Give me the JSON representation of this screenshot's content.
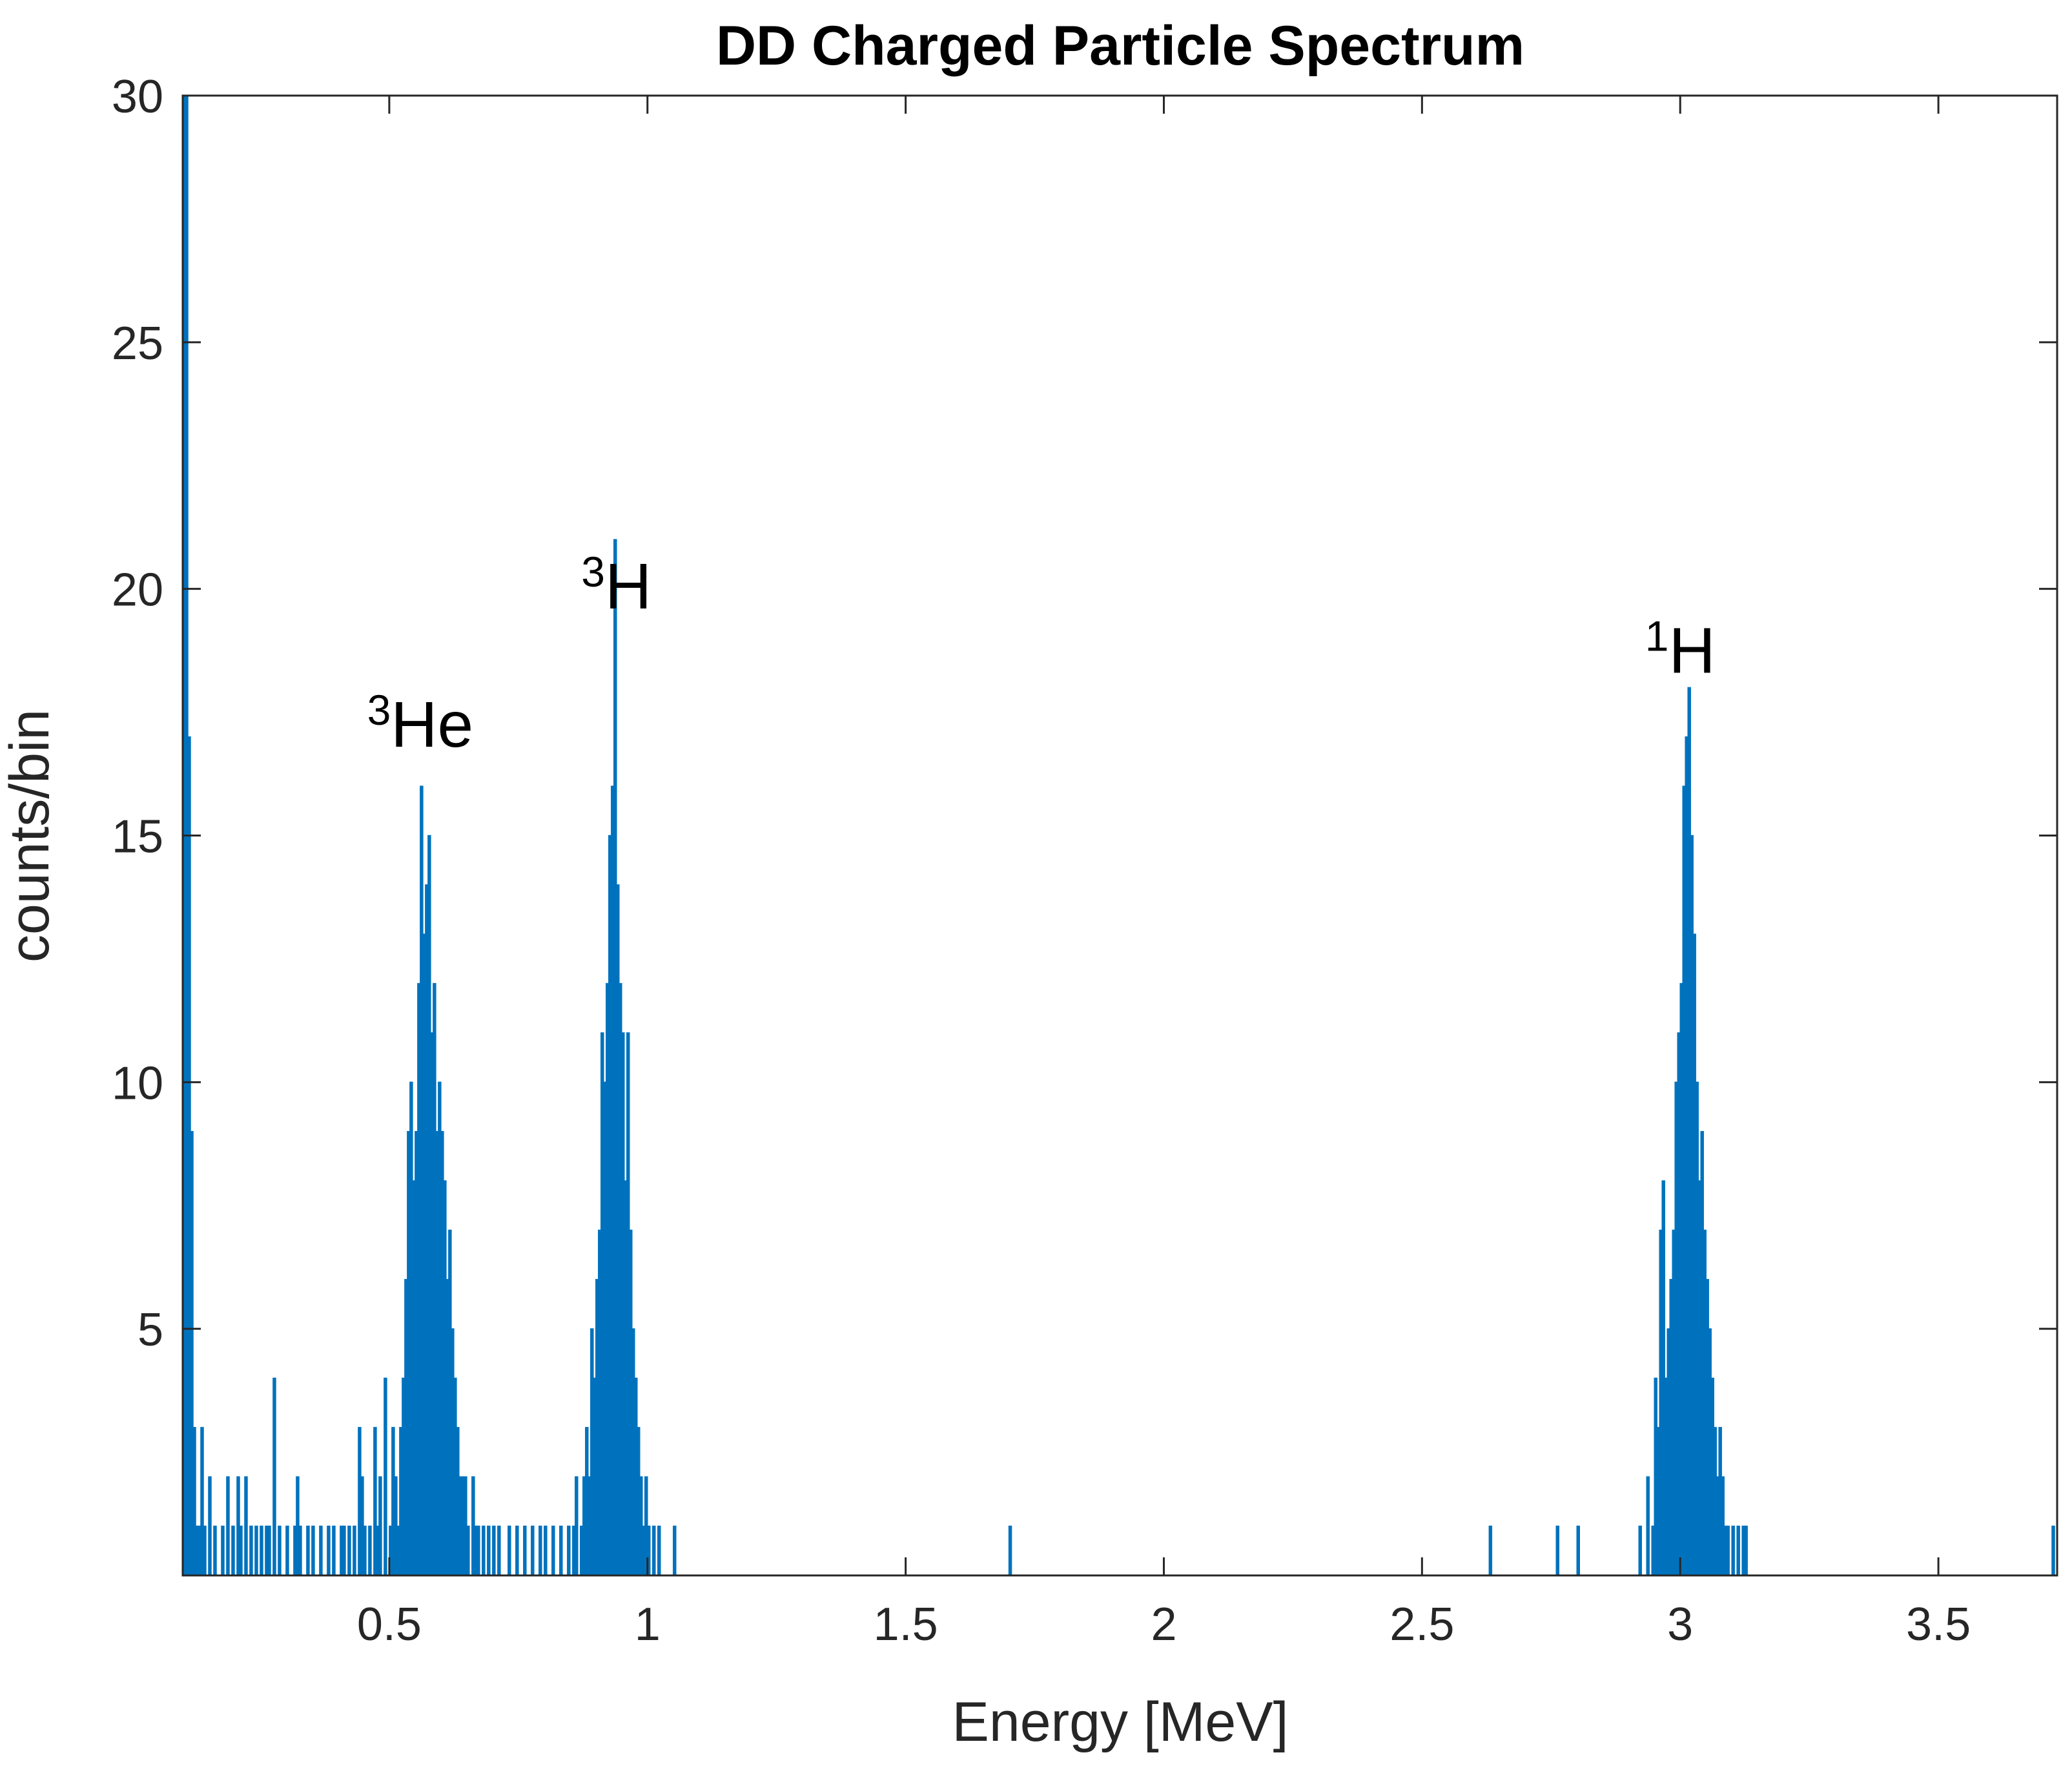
{
  "chart_data": {
    "type": "bar",
    "title": "DD Charged Particle Spectrum",
    "xlabel": "Energy [MeV]",
    "ylabel": "counts/bin",
    "xlim": [
      0.1,
      3.73
    ],
    "ylim": [
      0,
      30
    ],
    "bin_width": 0.005,
    "color": "#0072bd",
    "x_ticks": [
      0.5,
      1,
      1.5,
      2,
      2.5,
      3,
      3.5
    ],
    "x_tick_labels": [
      "0.5",
      "1",
      "1.5",
      "2",
      "2.5",
      "3",
      "3.5"
    ],
    "y_ticks": [
      5,
      10,
      15,
      20,
      25,
      30
    ],
    "y_tick_labels": [
      "5",
      "10",
      "15",
      "20",
      "25",
      "30"
    ],
    "annotations": [
      {
        "sup": "3",
        "text": "He",
        "x": 0.56,
        "y": 16.8
      },
      {
        "sup": "3",
        "text": "H",
        "x": 0.94,
        "y": 19.6
      },
      {
        "sup": "1",
        "text": "H",
        "x": 3.0,
        "y": 18.3
      }
    ],
    "bins": [
      [
        0.1,
        30
      ],
      [
        0.105,
        30
      ],
      [
        0.11,
        17
      ],
      [
        0.115,
        9
      ],
      [
        0.12,
        3
      ],
      [
        0.125,
        1
      ],
      [
        0.13,
        1
      ],
      [
        0.135,
        3
      ],
      [
        0.14,
        1
      ],
      [
        0.15,
        2
      ],
      [
        0.16,
        1
      ],
      [
        0.175,
        1
      ],
      [
        0.185,
        2
      ],
      [
        0.195,
        1
      ],
      [
        0.205,
        2
      ],
      [
        0.21,
        1
      ],
      [
        0.22,
        2
      ],
      [
        0.23,
        1
      ],
      [
        0.24,
        1
      ],
      [
        0.25,
        1
      ],
      [
        0.26,
        1
      ],
      [
        0.265,
        1
      ],
      [
        0.275,
        4
      ],
      [
        0.285,
        1
      ],
      [
        0.3,
        1
      ],
      [
        0.315,
        1
      ],
      [
        0.32,
        2
      ],
      [
        0.325,
        1
      ],
      [
        0.34,
        1
      ],
      [
        0.35,
        1
      ],
      [
        0.365,
        1
      ],
      [
        0.38,
        1
      ],
      [
        0.39,
        1
      ],
      [
        0.405,
        1
      ],
      [
        0.41,
        1
      ],
      [
        0.42,
        1
      ],
      [
        0.43,
        1
      ],
      [
        0.44,
        3
      ],
      [
        0.445,
        2
      ],
      [
        0.45,
        1
      ],
      [
        0.46,
        1
      ],
      [
        0.47,
        3
      ],
      [
        0.475,
        1
      ],
      [
        0.48,
        2
      ],
      [
        0.49,
        4
      ],
      [
        0.5,
        1
      ],
      [
        0.505,
        3
      ],
      [
        0.51,
        2
      ],
      [
        0.515,
        1
      ],
      [
        0.52,
        3
      ],
      [
        0.525,
        4
      ],
      [
        0.53,
        6
      ],
      [
        0.535,
        9
      ],
      [
        0.54,
        10
      ],
      [
        0.545,
        8
      ],
      [
        0.55,
        9
      ],
      [
        0.555,
        12
      ],
      [
        0.56,
        16
      ],
      [
        0.565,
        13
      ],
      [
        0.57,
        14
      ],
      [
        0.575,
        15
      ],
      [
        0.58,
        11
      ],
      [
        0.585,
        12
      ],
      [
        0.59,
        9
      ],
      [
        0.595,
        10
      ],
      [
        0.6,
        9
      ],
      [
        0.605,
        8
      ],
      [
        0.61,
        6
      ],
      [
        0.615,
        7
      ],
      [
        0.62,
        5
      ],
      [
        0.625,
        4
      ],
      [
        0.63,
        3
      ],
      [
        0.635,
        2
      ],
      [
        0.64,
        2
      ],
      [
        0.645,
        2
      ],
      [
        0.65,
        1
      ],
      [
        0.66,
        2
      ],
      [
        0.665,
        1
      ],
      [
        0.67,
        1
      ],
      [
        0.68,
        1
      ],
      [
        0.69,
        1
      ],
      [
        0.7,
        1
      ],
      [
        0.71,
        1
      ],
      [
        0.73,
        1
      ],
      [
        0.745,
        1
      ],
      [
        0.76,
        1
      ],
      [
        0.775,
        1
      ],
      [
        0.79,
        1
      ],
      [
        0.8,
        1
      ],
      [
        0.815,
        1
      ],
      [
        0.83,
        1
      ],
      [
        0.845,
        1
      ],
      [
        0.855,
        1
      ],
      [
        0.86,
        2
      ],
      [
        0.87,
        1
      ],
      [
        0.875,
        2
      ],
      [
        0.88,
        3
      ],
      [
        0.885,
        2
      ],
      [
        0.89,
        5
      ],
      [
        0.895,
        4
      ],
      [
        0.9,
        6
      ],
      [
        0.905,
        7
      ],
      [
        0.91,
        11
      ],
      [
        0.915,
        10
      ],
      [
        0.92,
        12
      ],
      [
        0.925,
        15
      ],
      [
        0.93,
        16
      ],
      [
        0.935,
        21
      ],
      [
        0.94,
        14
      ],
      [
        0.945,
        12
      ],
      [
        0.95,
        11
      ],
      [
        0.955,
        8
      ],
      [
        0.96,
        11
      ],
      [
        0.965,
        7
      ],
      [
        0.97,
        5
      ],
      [
        0.975,
        4
      ],
      [
        0.98,
        3
      ],
      [
        0.985,
        2
      ],
      [
        0.99,
        1
      ],
      [
        0.995,
        2
      ],
      [
        1.0,
        1
      ],
      [
        1.01,
        1
      ],
      [
        1.02,
        1
      ],
      [
        1.05,
        1
      ],
      [
        1.7,
        1
      ],
      [
        2.63,
        1
      ],
      [
        2.76,
        1
      ],
      [
        2.8,
        1
      ],
      [
        2.92,
        1
      ],
      [
        2.935,
        2
      ],
      [
        2.945,
        1
      ],
      [
        2.95,
        4
      ],
      [
        2.955,
        3
      ],
      [
        2.96,
        7
      ],
      [
        2.965,
        8
      ],
      [
        2.97,
        4
      ],
      [
        2.975,
        5
      ],
      [
        2.98,
        6
      ],
      [
        2.985,
        7
      ],
      [
        2.99,
        10
      ],
      [
        2.995,
        11
      ],
      [
        3.0,
        12
      ],
      [
        3.005,
        16
      ],
      [
        3.01,
        17
      ],
      [
        3.015,
        18
      ],
      [
        3.02,
        15
      ],
      [
        3.025,
        13
      ],
      [
        3.03,
        10
      ],
      [
        3.035,
        8
      ],
      [
        3.04,
        9
      ],
      [
        3.045,
        7
      ],
      [
        3.05,
        6
      ],
      [
        3.055,
        5
      ],
      [
        3.06,
        4
      ],
      [
        3.065,
        3
      ],
      [
        3.07,
        2
      ],
      [
        3.075,
        3
      ],
      [
        3.08,
        2
      ],
      [
        3.085,
        1
      ],
      [
        3.09,
        1
      ],
      [
        3.1,
        1
      ],
      [
        3.11,
        1
      ],
      [
        3.12,
        1
      ],
      [
        3.125,
        1
      ],
      [
        3.72,
        1
      ]
    ]
  }
}
